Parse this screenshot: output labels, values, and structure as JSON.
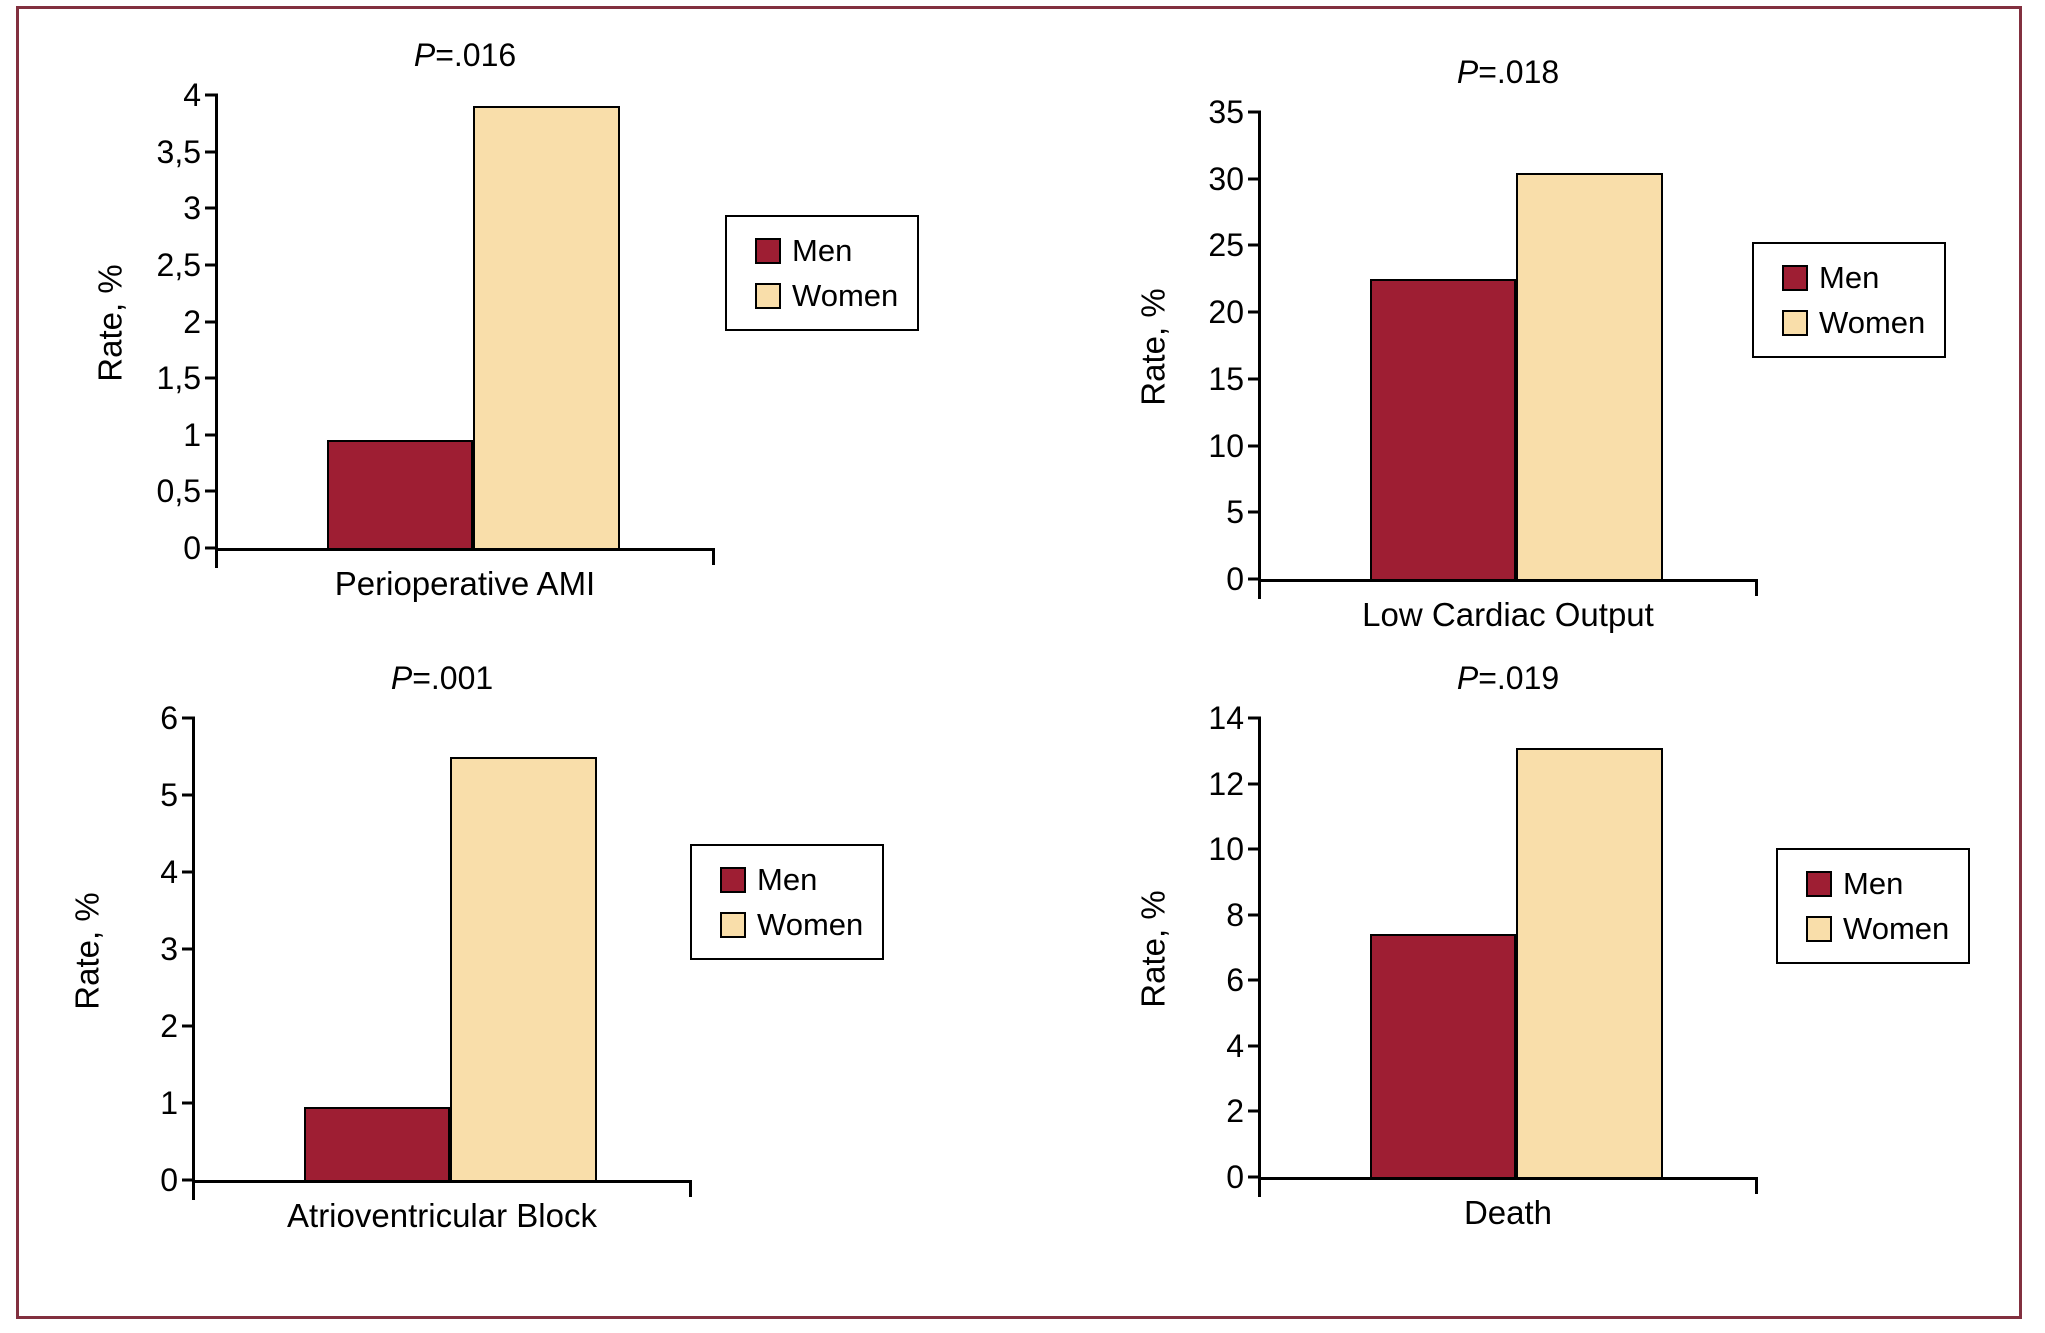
{
  "figure": {
    "description": "Four bar charts comparing postoperative outcome rates between men and women",
    "frame_color": "#82303F"
  },
  "colors": {
    "men": "#9E1E33",
    "women": "#F9DEAA",
    "frame": "#82303F",
    "axis": "#000000"
  },
  "legend": {
    "men_label": "Men",
    "women_label": "Women"
  },
  "chart_data": [
    {
      "type": "bar",
      "p_value": "P=.016",
      "p_symbol": "P",
      "p_suffix": "=.016",
      "categories": [
        "Men",
        "Women"
      ],
      "series": [
        {
          "name": "Men",
          "value": 0.95
        },
        {
          "name": "Women",
          "value": 3.9
        }
      ],
      "xlabel": "Perioperative AMI",
      "ylabel": "Rate, %",
      "ylim": [
        0,
        4
      ],
      "yticks": [
        {
          "label": "0",
          "value": 0
        },
        {
          "label": "0,5",
          "value": 0.5
        },
        {
          "label": "1",
          "value": 1
        },
        {
          "label": "1,5",
          "value": 1.5
        },
        {
          "label": "2",
          "value": 2
        },
        {
          "label": "2,5",
          "value": 2.5
        },
        {
          "label": "3",
          "value": 3
        },
        {
          "label": "3,5",
          "value": 3.5
        },
        {
          "label": "4",
          "value": 4
        }
      ],
      "legend": [
        "Men",
        "Women"
      ],
      "legend_position": "right",
      "grid": false
    },
    {
      "type": "bar",
      "p_value": "P=.018",
      "p_symbol": "P",
      "p_suffix": "=.018",
      "categories": [
        "Men",
        "Women"
      ],
      "series": [
        {
          "name": "Men",
          "value": 22.5
        },
        {
          "name": "Women",
          "value": 30.4
        }
      ],
      "xlabel": "Low Cardiac Output",
      "ylabel": "Rate, %",
      "ylim": [
        0,
        35
      ],
      "yticks": [
        {
          "label": "0",
          "value": 0
        },
        {
          "label": "5",
          "value": 5
        },
        {
          "label": "10",
          "value": 10
        },
        {
          "label": "15",
          "value": 15
        },
        {
          "label": "20",
          "value": 20
        },
        {
          "label": "25",
          "value": 25
        },
        {
          "label": "30",
          "value": 30
        },
        {
          "label": "35",
          "value": 35
        }
      ],
      "legend": [
        "Men",
        "Women"
      ],
      "legend_position": "right",
      "grid": false
    },
    {
      "type": "bar",
      "p_value": "P=.001",
      "p_symbol": "P",
      "p_suffix": "=.001",
      "categories": [
        "Men",
        "Women"
      ],
      "series": [
        {
          "name": "Men",
          "value": 0.95
        },
        {
          "name": "Women",
          "value": 5.5
        }
      ],
      "xlabel": "Atrioventricular Block",
      "ylabel": "Rate, %",
      "ylim": [
        0,
        6
      ],
      "yticks": [
        {
          "label": "0",
          "value": 0
        },
        {
          "label": "1",
          "value": 1
        },
        {
          "label": "2",
          "value": 2
        },
        {
          "label": "3",
          "value": 3
        },
        {
          "label": "4",
          "value": 4
        },
        {
          "label": "5",
          "value": 5
        },
        {
          "label": "6",
          "value": 6
        }
      ],
      "legend": [
        "Men",
        "Women"
      ],
      "legend_position": "right",
      "grid": false
    },
    {
      "type": "bar",
      "p_value": "P=.019",
      "p_symbol": "P",
      "p_suffix": "=.019",
      "categories": [
        "Men",
        "Women"
      ],
      "series": [
        {
          "name": "Men",
          "value": 7.4
        },
        {
          "name": "Women",
          "value": 13.1
        }
      ],
      "xlabel": "Death",
      "ylabel": "Rate, %",
      "ylim": [
        0,
        14
      ],
      "yticks": [
        {
          "label": "0",
          "value": 0
        },
        {
          "label": "2",
          "value": 2
        },
        {
          "label": "4",
          "value": 4
        },
        {
          "label": "6",
          "value": 6
        },
        {
          "label": "8",
          "value": 8
        },
        {
          "label": "10",
          "value": 10
        },
        {
          "label": "12",
          "value": 12
        },
        {
          "label": "14",
          "value": 14
        }
      ],
      "legend": [
        "Men",
        "Women"
      ],
      "legend_position": "right",
      "grid": false
    }
  ]
}
